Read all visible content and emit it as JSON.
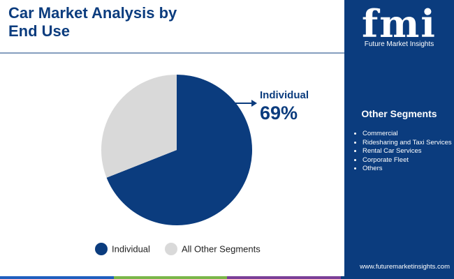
{
  "chart_data": {
    "type": "pie",
    "title": "Car Market Analysis by End Use",
    "categories": [
      "Individual",
      "All Other Segments"
    ],
    "values": [
      69,
      31
    ],
    "value_labels": [
      "69%",
      null
    ],
    "colors": [
      "#0b3c7e",
      "#d9d9d9"
    ],
    "legend": "bottom"
  },
  "sidebar": {
    "logo": "fmi",
    "brand": "Future Market Insights",
    "heading": "Other Segments",
    "items": [
      "Commercial",
      "Ridesharing and Taxi Services",
      "Rental Car Services",
      "Corporate Fleet",
      "Others"
    ],
    "url": "www.futuremarketinsights.com"
  }
}
